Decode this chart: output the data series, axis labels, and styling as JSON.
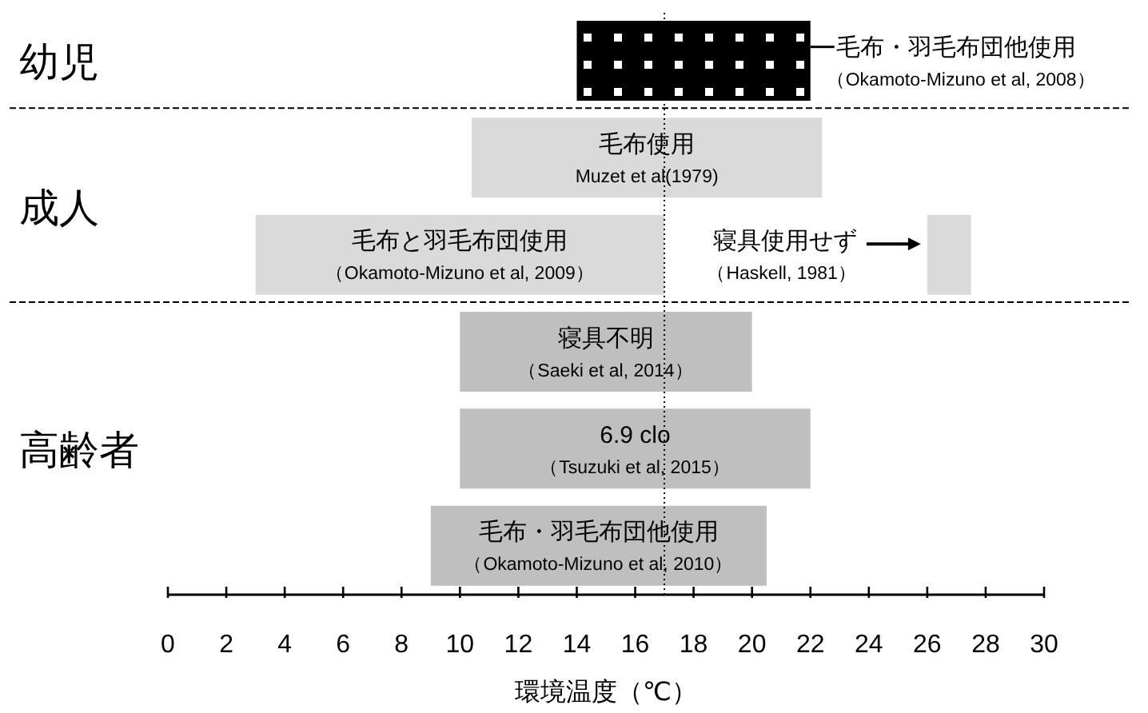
{
  "chart_data": {
    "type": "bar",
    "orientation": "horizontal",
    "xlabel": "環境温度（℃）",
    "categories": [
      null,
      null,
      null,
      null,
      null,
      null
    ],
    "series": [
      {
        "values": [
          8,
          12,
          14,
          10,
          12,
          11.5
        ],
        "base": [
          14,
          10.4,
          3,
          10,
          10,
          9
        ],
        "colors": [
          "#000000",
          "#dadada",
          "#dadada",
          "#bfbfbf",
          "#bfbfbf",
          "#bfbfbf"
        ]
      },
      {
        "values": [
          null,
          null,
          1.5,
          null,
          null,
          null
        ],
        "base": [
          null,
          null,
          26,
          null,
          null,
          null
        ],
        "color": "#dadada"
      }
    ],
    "xlim": [
      0,
      30
    ],
    "xticks": [
      0,
      2,
      4,
      6,
      8,
      10,
      12,
      14,
      16,
      18,
      20,
      22,
      24,
      26,
      28,
      30
    ],
    "ref_lines": [
      {
        "axis": "x",
        "value": 17,
        "line_style": "dotted",
        "color": "#000000"
      }
    ],
    "annotations": [
      "幼児",
      "成人",
      "高齢者",
      "毛布・羽毛布団他使用",
      "（Okamoto-Mizuno et al, 2008）",
      "毛布使用",
      "Muzet et al(1979)",
      "毛布と羽毛布団使用",
      "（Okamoto-Mizuno et al, 2009）",
      "寝具不明",
      "（Saeki et al, 2014）",
      "6.9 clo",
      "（Tsuzuki et al, 2015）",
      "毛布・羽毛布団他使用",
      "（Okamoto-Mizuno et al, 2010）",
      "寝具使用せず",
      "（Haskell, 1981）"
    ]
  }
}
